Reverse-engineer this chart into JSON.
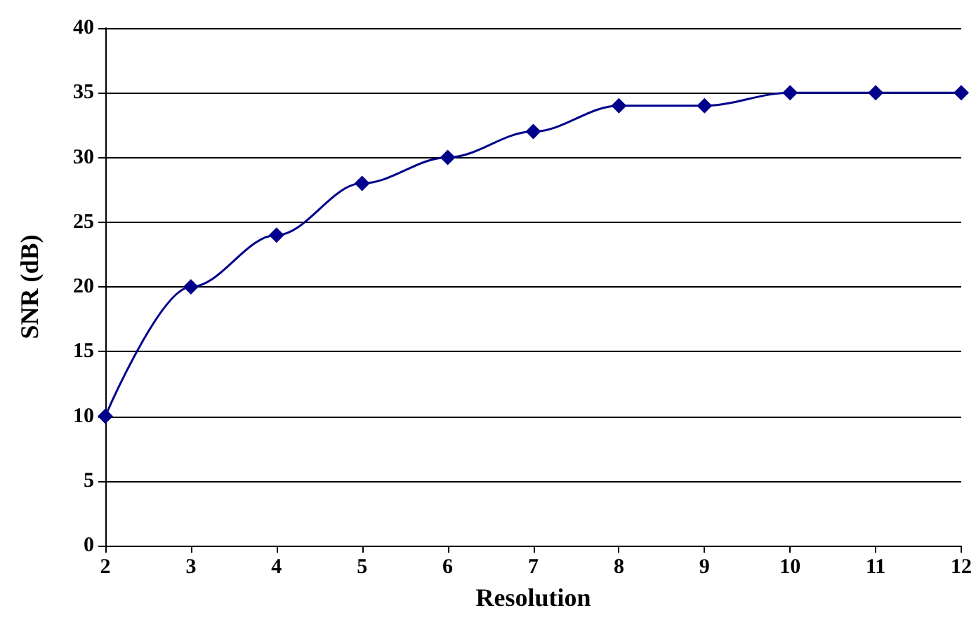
{
  "chart_data": {
    "type": "line",
    "xlabel": "Resolution",
    "ylabel": "SNR (dB)",
    "x": [
      2,
      3,
      4,
      5,
      6,
      7,
      8,
      9,
      10,
      11,
      12
    ],
    "series": [
      {
        "color": "#00008b",
        "values": [
          10,
          20,
          24,
          28,
          30,
          32,
          34,
          34,
          35,
          35,
          35
        ]
      }
    ],
    "xlim": [
      2,
      12
    ],
    "xticks": [
      2,
      3,
      4,
      5,
      6,
      7,
      8,
      9,
      10,
      11,
      12
    ],
    "ylim": [
      0,
      40
    ],
    "yticks": [
      0,
      5,
      10,
      15,
      20,
      25,
      30,
      35,
      40
    ],
    "grid": "y",
    "marker": "diamond",
    "line_style": "solid"
  }
}
